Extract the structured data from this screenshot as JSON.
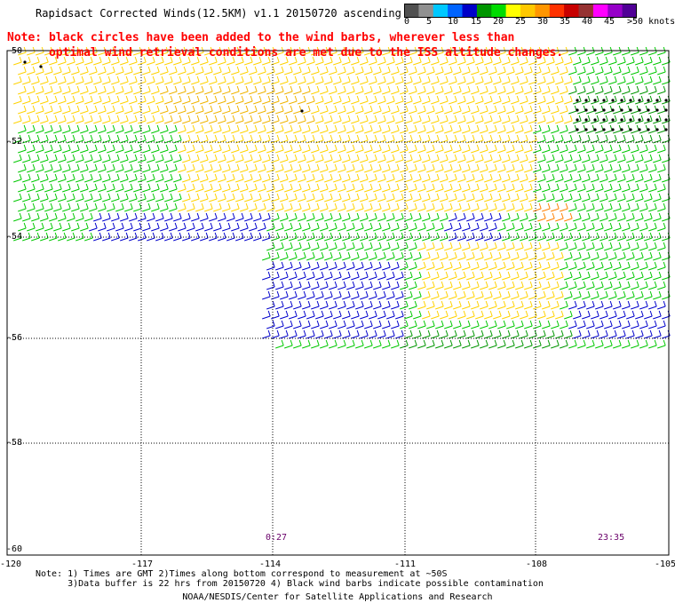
{
  "title": "Rapidsact Corrected Winds(12.5KM) v1.1 20150720 ascending",
  "note_line1": "Note: black circles have been added to the wind barbs, wherever less than",
  "note_line2": "      optimal wind retrieval conditions are met due to the ISS altitude changes.",
  "colorbar": {
    "labels": [
      "0",
      "5",
      "10",
      "15",
      "20",
      "25",
      "30",
      "35",
      "40",
      "45",
      ">50 knots"
    ],
    "colors": [
      "#505050",
      "#909090",
      "#00c8ff",
      "#0064ff",
      "#0000c8",
      "#009600",
      "#00dc00",
      "#ffff00",
      "#ffc800",
      "#ff9600",
      "#ff3200",
      "#c80000",
      "#963232",
      "#ff00ff",
      "#9600c8",
      "#500096"
    ]
  },
  "axes": {
    "y_labels": [
      "-50",
      "-52",
      "-54",
      "-56",
      "-58",
      "-60"
    ],
    "x_labels": [
      "-120",
      "-117",
      "-114",
      "-111",
      "-108",
      "-105"
    ]
  },
  "time_labels": [
    "0:27",
    "23:35"
  ],
  "footnote_line1": "Note: 1) Times are GMT 2)Times along bottom correspond to measurement at ~50S",
  "footnote_line2": "      3)Data buffer is 22 hrs from 20150720 4) Black wind barbs indicate possible contamination",
  "credit": "NOAA/NESDIS/Center for Satellite Applications and Research",
  "wind_field": {
    "region_colors": {
      "yellow": "#ffd200",
      "gold": "#f0b400",
      "green": "#00c800",
      "darkgreen": "#009600",
      "blue": "#0000cc",
      "cyan": "#00c8ff",
      "orange": "#ff8000",
      "black": "#000000"
    }
  }
}
